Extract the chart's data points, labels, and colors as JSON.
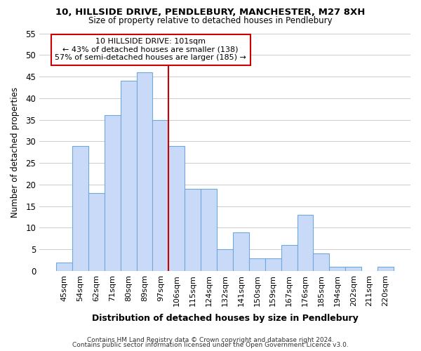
{
  "title1": "10, HILLSIDE DRIVE, PENDLEBURY, MANCHESTER, M27 8XH",
  "title2": "Size of property relative to detached houses in Pendlebury",
  "xlabel": "Distribution of detached houses by size in Pendlebury",
  "ylabel": "Number of detached properties",
  "bar_labels": [
    "45sqm",
    "54sqm",
    "62sqm",
    "71sqm",
    "80sqm",
    "89sqm",
    "97sqm",
    "106sqm",
    "115sqm",
    "124sqm",
    "132sqm",
    "141sqm",
    "150sqm",
    "159sqm",
    "167sqm",
    "176sqm",
    "185sqm",
    "194sqm",
    "202sqm",
    "211sqm",
    "220sqm"
  ],
  "bar_values": [
    2,
    29,
    18,
    36,
    44,
    46,
    35,
    29,
    19,
    19,
    5,
    9,
    3,
    3,
    6,
    13,
    4,
    1,
    1,
    0,
    1
  ],
  "bar_color": "#c9daf8",
  "bar_edge_color": "#6fa8dc",
  "vline_color": "#cc0000",
  "annotation_text": "10 HILLSIDE DRIVE: 101sqm\n← 43% of detached houses are smaller (138)\n57% of semi-detached houses are larger (185) →",
  "annotation_box_color": "#ffffff",
  "annotation_box_edge": "#cc0000",
  "ylim": [
    0,
    55
  ],
  "yticks": [
    0,
    5,
    10,
    15,
    20,
    25,
    30,
    35,
    40,
    45,
    50,
    55
  ],
  "footer1": "Contains HM Land Registry data © Crown copyright and database right 2024.",
  "footer2": "Contains public sector information licensed under the Open Government Licence v3.0.",
  "fig_bg": "#ffffff",
  "plot_bg": "#ffffff",
  "grid_color": "#cccccc"
}
